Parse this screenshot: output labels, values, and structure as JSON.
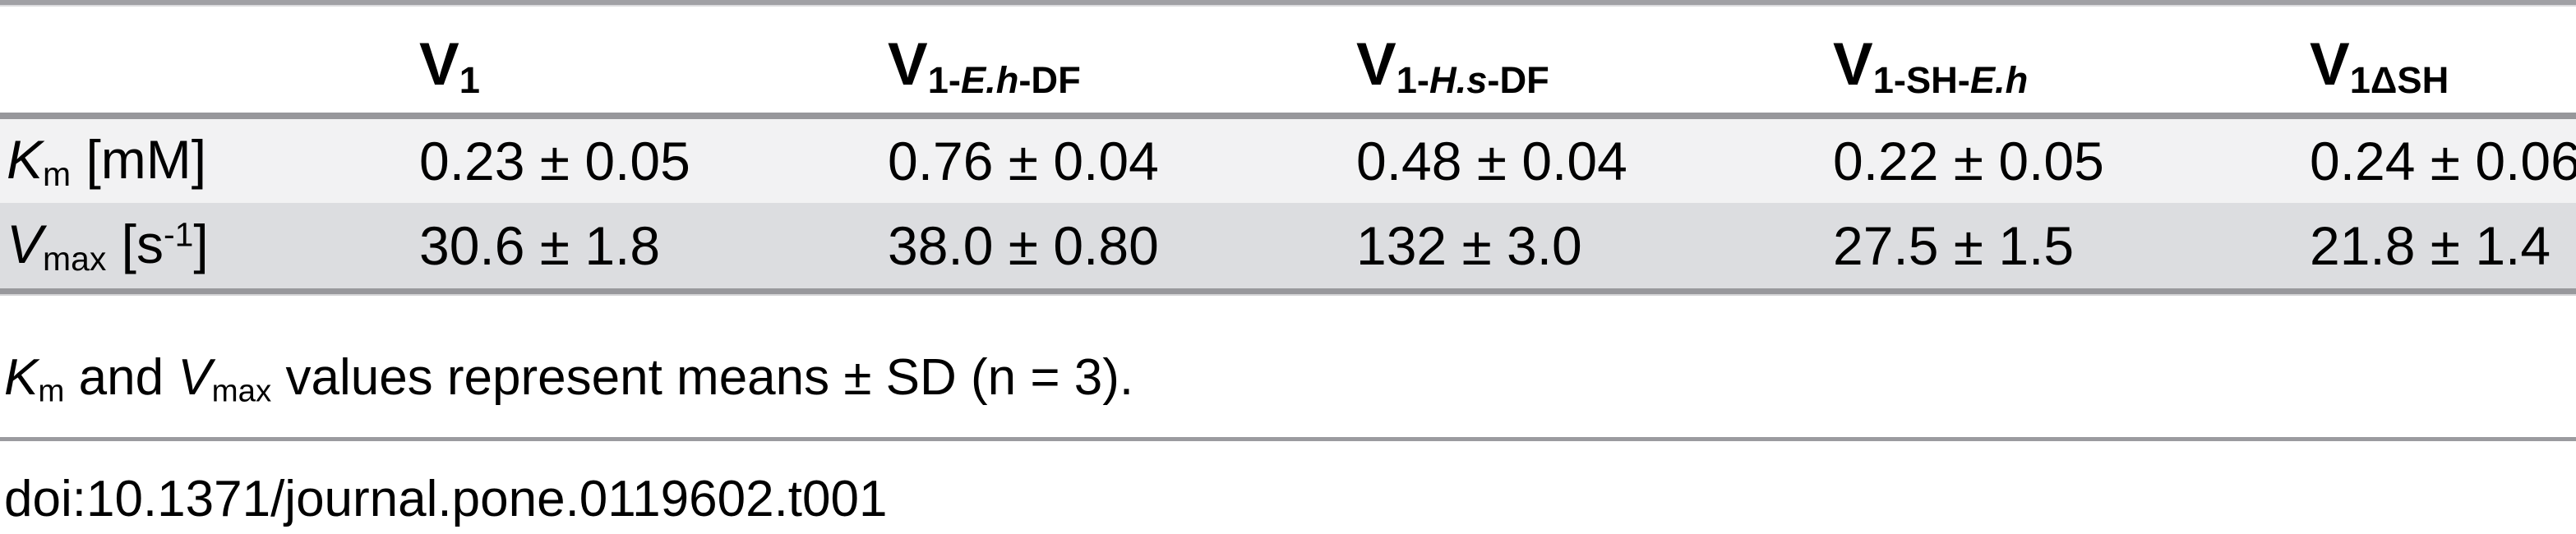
{
  "table": {
    "header": [
      {
        "name": "blank",
        "segments": []
      },
      {
        "name": "v1",
        "segments": [
          {
            "t": "V"
          },
          {
            "t": "1",
            "s": "sub"
          }
        ]
      },
      {
        "name": "v1-eh-df",
        "segments": [
          {
            "t": "V"
          },
          {
            "t": "1-",
            "s": "sub"
          },
          {
            "t": "E.h",
            "s": "sub-i"
          },
          {
            "t": "-DF",
            "s": "sub"
          }
        ]
      },
      {
        "name": "v1-hs-df",
        "segments": [
          {
            "t": "V"
          },
          {
            "t": "1-",
            "s": "sub"
          },
          {
            "t": "H.s",
            "s": "sub-i"
          },
          {
            "t": "-DF",
            "s": "sub"
          }
        ]
      },
      {
        "name": "v1-sh-eh",
        "segments": [
          {
            "t": "V"
          },
          {
            "t": "1-SH-",
            "s": "sub"
          },
          {
            "t": "E.h",
            "s": "sub-i"
          }
        ]
      },
      {
        "name": "v1-delta-sh",
        "segments": [
          {
            "t": "V"
          },
          {
            "t": "1ΔSH",
            "s": "sub"
          }
        ]
      }
    ],
    "rows": [
      {
        "name": "km",
        "label_segments": [
          {
            "t": "K",
            "s": "i"
          },
          {
            "t": "m",
            "s": "sub"
          },
          {
            "t": " [mM]"
          }
        ],
        "values": [
          "0.23 ± 0.05",
          "0.76 ± 0.04",
          "0.48 ± 0.04",
          "0.22 ± 0.05",
          "0.24 ± 0.06"
        ]
      },
      {
        "name": "vmax",
        "label_segments": [
          {
            "t": "V",
            "s": "i"
          },
          {
            "t": "max",
            "s": "sub"
          },
          {
            "t": " [s"
          },
          {
            "t": "-1",
            "s": "sup"
          },
          {
            "t": "]"
          }
        ],
        "values": [
          "30.6 ± 1.8",
          "38.0 ± 0.80",
          "132 ± 3.0",
          "27.5 ± 1.5",
          "21.8 ± 1.4"
        ]
      }
    ]
  },
  "footnote_segments": [
    {
      "t": "K",
      "s": "i"
    },
    {
      "t": "m",
      "s": "sub"
    },
    {
      "t": " and "
    },
    {
      "t": "V",
      "s": "i"
    },
    {
      "t": "max",
      "s": "sub"
    },
    {
      "t": " values represent means ± SD (n = 3)."
    }
  ],
  "doi": "doi:10.1371/journal.pone.0119602.t001",
  "colors": {
    "row_odd": "#f2f2f3",
    "row_even": "#dcdde0",
    "border_top": "#a1a1a5",
    "border": "#97979b",
    "rule": "#9b9b9f",
    "text": "#000000"
  }
}
